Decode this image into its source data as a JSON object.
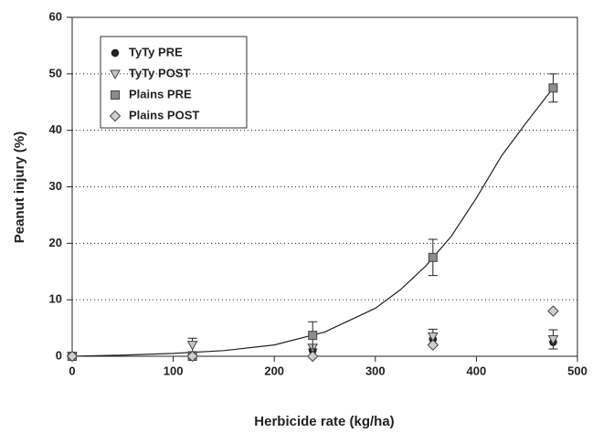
{
  "chart_data": {
    "type": "scatter",
    "xlabel": "Herbicide rate (kg/ha)",
    "ylabel": "Peanut injury (%)",
    "x": [
      0,
      119,
      238,
      357,
      476
    ],
    "xlim": [
      0,
      500
    ],
    "xticks": [
      0,
      100,
      200,
      300,
      400,
      500
    ],
    "ylim": [
      0,
      60
    ],
    "yticks": [
      0,
      10,
      20,
      30,
      40,
      50,
      60
    ],
    "grid": true,
    "legend": "upper left",
    "series": [
      {
        "name": "TyTy PRE",
        "marker": "circle",
        "color": "#222222",
        "values": [
          0,
          0,
          1,
          3,
          2.5
        ],
        "errors": [
          null,
          null,
          null,
          null,
          null
        ]
      },
      {
        "name": "TyTy POST",
        "marker": "triangle-down",
        "color": "#c8c8c8",
        "values": [
          0,
          2,
          1.5,
          3.5,
          3
        ],
        "errors": [
          null,
          1.2,
          null,
          1.3,
          1.7
        ]
      },
      {
        "name": "Plains PRE",
        "marker": "square",
        "color": "#8c8c8c",
        "values": [
          0,
          0,
          3.7,
          17.5,
          47.5
        ],
        "errors": [
          null,
          null,
          2.4,
          3.2,
          2.5
        ]
      },
      {
        "name": "Plains POST",
        "marker": "diamond",
        "color": "#cfcfcf",
        "values": [
          0,
          0,
          0,
          2,
          8
        ],
        "errors": [
          null,
          null,
          null,
          null,
          null
        ]
      }
    ],
    "fit": {
      "x": [
        0,
        50,
        100,
        150,
        200,
        250,
        300,
        325,
        350,
        375,
        400,
        425,
        450,
        476
      ],
      "y": [
        0,
        0.2,
        0.5,
        1,
        2,
        4.3,
        8.5,
        11.8,
        16,
        21.2,
        28,
        35.5,
        41.5,
        47.5
      ]
    }
  }
}
